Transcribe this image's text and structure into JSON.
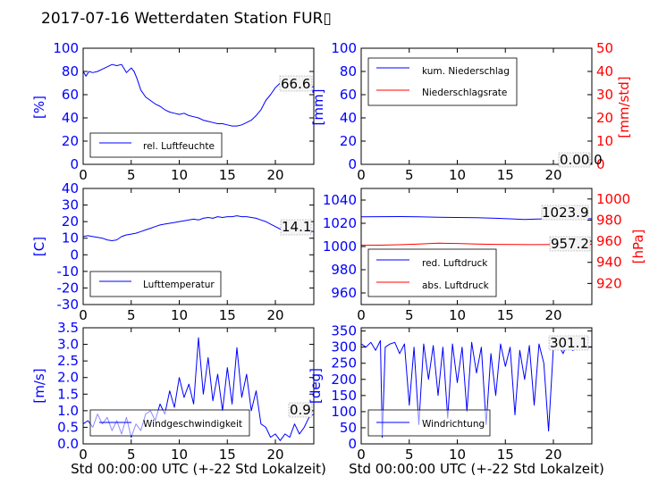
{
  "title": "2017-07-16 Wetterdaten Station FUR▯",
  "xlabel_bottom": "Std 00:00:00 UTC (+-22 Std Lokalzeit)",
  "colors": {
    "blue": "#0000ff",
    "red": "#ff0000",
    "black": "#000000"
  },
  "chart_data": [
    {
      "id": "humidity",
      "type": "line",
      "xlim": [
        0,
        24
      ],
      "ylim": [
        0,
        100
      ],
      "xticks": [
        0,
        5,
        10,
        15,
        20
      ],
      "yticks": [
        0,
        20,
        40,
        60,
        80,
        100
      ],
      "ylabel": "[%]",
      "last_value": "66.6",
      "series": [
        {
          "name": "rel. Luftfeuchte",
          "color": "#0000ff",
          "x": [
            0,
            0.3,
            0.6,
            1,
            1.5,
            2,
            2.5,
            3,
            3.5,
            4,
            4.5,
            5,
            5.3,
            5.6,
            6,
            6.5,
            7,
            7.5,
            8,
            8.5,
            9,
            9.5,
            10,
            10.5,
            11,
            11.5,
            12,
            12.5,
            13,
            13.5,
            14,
            14.5,
            15,
            15.5,
            16,
            16.5,
            17,
            17.5,
            18,
            18.5,
            19,
            19.5,
            20,
            20.5,
            21,
            21.5,
            22,
            22.5,
            23,
            23.5,
            24
          ],
          "y": [
            80,
            76,
            80,
            79,
            80,
            82,
            84,
            86,
            85,
            86,
            79,
            83,
            80,
            74,
            64,
            58,
            55,
            52,
            50,
            47,
            45,
            44,
            43,
            44,
            42,
            41,
            40,
            38,
            37,
            36,
            35,
            35,
            34,
            33,
            33,
            34,
            36,
            38,
            42,
            47,
            55,
            60,
            66,
            70,
            68,
            65,
            67,
            66,
            65,
            66,
            67
          ]
        }
      ],
      "legend_loc": "lower-left"
    },
    {
      "id": "precip",
      "type": "line",
      "xlim": [
        0,
        24
      ],
      "ylim": [
        0,
        100
      ],
      "ylim_right": [
        0,
        50
      ],
      "xticks": [
        0,
        5,
        10,
        15,
        20
      ],
      "yticks": [
        0,
        20,
        40,
        60,
        80,
        100
      ],
      "yticks_right": [
        0,
        10,
        20,
        30,
        40,
        50
      ],
      "ylabel": "[mm]",
      "ylabel_right": "[mm/std]",
      "last_value": "0.00.0",
      "series": [
        {
          "name": "kum. Niederschlag",
          "color": "#0000ff",
          "axis": "left",
          "x": [
            0,
            24
          ],
          "y": [
            0,
            0
          ]
        },
        {
          "name": "Niederschlagsrate",
          "color": "#ff0000",
          "axis": "right",
          "x": [
            0,
            24
          ],
          "y": [
            0,
            0
          ]
        }
      ],
      "legend_loc": "upper-left"
    },
    {
      "id": "temperature",
      "type": "line",
      "xlim": [
        0,
        24
      ],
      "ylim": [
        -30,
        40
      ],
      "xticks": [
        0,
        5,
        10,
        15,
        20
      ],
      "yticks": [
        -30,
        -20,
        -10,
        0,
        10,
        20,
        30,
        40
      ],
      "ylabel": "[C]",
      "last_value": "14.1",
      "series": [
        {
          "name": "Lufttemperatur",
          "color": "#0000ff",
          "x": [
            0,
            0.5,
            1,
            1.5,
            2,
            2.5,
            3,
            3.5,
            4,
            4.5,
            5,
            5.5,
            6,
            6.5,
            7,
            7.5,
            8,
            8.5,
            9,
            9.5,
            10,
            10.5,
            11,
            11.5,
            12,
            12.5,
            13,
            13.5,
            14,
            14.5,
            15,
            15.5,
            16,
            16.5,
            17,
            17.5,
            18,
            18.5,
            19,
            19.5,
            20,
            20.5,
            21,
            21.5,
            22,
            22.5,
            23,
            23.5,
            24
          ],
          "y": [
            11,
            11.5,
            11,
            10.5,
            10,
            9,
            8.5,
            9,
            11,
            12,
            12.5,
            13,
            14,
            15,
            16,
            17,
            18,
            18.5,
            19,
            19.5,
            20,
            20.5,
            21,
            21.5,
            21,
            22,
            22.5,
            22,
            23,
            22.5,
            23,
            23,
            23.5,
            23,
            23,
            22.5,
            22,
            21,
            20,
            18.5,
            17,
            15.5,
            15,
            14.5,
            14.2,
            14.1,
            14,
            14.1,
            14.1
          ]
        }
      ],
      "legend_loc": "lower-left"
    },
    {
      "id": "pressure",
      "type": "line",
      "xlim": [
        0,
        24
      ],
      "ylim": [
        950,
        1050
      ],
      "ylim_right": [
        900,
        1010
      ],
      "xticks": [
        0,
        5,
        10,
        15,
        20
      ],
      "yticks": [
        960,
        980,
        1000,
        1020,
        1040
      ],
      "yticks_right": [
        920,
        940,
        960,
        980,
        1000
      ],
      "ylabel_right": "[hPa]",
      "last_values": [
        "1023.9",
        "957.2"
      ],
      "series": [
        {
          "name": "red. Luftdruck",
          "color": "#0000ff",
          "axis": "left",
          "x": [
            0,
            2,
            4,
            6,
            8,
            10,
            12,
            14,
            16,
            17,
            18,
            20,
            22,
            24
          ],
          "y": [
            1025.5,
            1025.7,
            1025.8,
            1025.6,
            1025.2,
            1025,
            1024.8,
            1024.3,
            1023.6,
            1023.3,
            1023.5,
            1024,
            1024.1,
            1023.9
          ]
        },
        {
          "name": "abs. Luftdruck",
          "color": "#ff0000",
          "axis": "right",
          "x": [
            0,
            2,
            4,
            6,
            8,
            10,
            12,
            14,
            16,
            18,
            20,
            22,
            24
          ],
          "y": [
            956.2,
            956.3,
            956.7,
            957.4,
            958.1,
            957.9,
            957.4,
            957,
            956.9,
            956.8,
            956.9,
            957.1,
            957.2
          ]
        }
      ],
      "legend_loc": "lower-left"
    },
    {
      "id": "windspeed",
      "type": "line",
      "xlim": [
        0,
        24
      ],
      "ylim": [
        0,
        3.5
      ],
      "xticks": [
        0,
        5,
        10,
        15,
        20
      ],
      "yticks": [
        0.0,
        0.5,
        1.0,
        1.5,
        2.0,
        2.5,
        3.0,
        3.5
      ],
      "ylabel": "[m/s]",
      "last_value": "0.9",
      "series": [
        {
          "name": "Windgeschwindigkeit",
          "color": "#0000ff",
          "x": [
            0,
            0.5,
            1,
            1.5,
            2,
            2.5,
            3,
            3.5,
            4,
            4.5,
            5,
            5.5,
            6,
            6.5,
            7,
            7.5,
            8,
            8.5,
            9,
            9.5,
            10,
            10.5,
            11,
            11.5,
            12,
            12.5,
            13,
            13.5,
            14,
            14.5,
            15,
            15.5,
            16,
            16.5,
            17,
            17.5,
            18,
            18.5,
            19,
            19.5,
            20,
            20.5,
            21,
            21.5,
            22,
            22.5,
            23,
            23.5,
            24
          ],
          "y": [
            0.6,
            0.7,
            0.5,
            0.9,
            0.6,
            0.8,
            0.4,
            0.7,
            0.3,
            0.8,
            0.2,
            0.6,
            0.4,
            0.9,
            1.0,
            0.7,
            1.2,
            0.9,
            1.6,
            1.1,
            2.0,
            1.4,
            1.8,
            1.2,
            3.2,
            1.5,
            2.6,
            1.3,
            2.1,
            1.0,
            2.3,
            1.2,
            2.9,
            1.4,
            2.1,
            1.0,
            1.6,
            0.6,
            0.5,
            0.2,
            0.3,
            0.1,
            0.3,
            0.2,
            0.6,
            0.3,
            0.5,
            0.8,
            0.9
          ]
        }
      ],
      "legend_loc": "lower-left"
    },
    {
      "id": "winddir",
      "type": "line",
      "xlim": [
        0,
        24
      ],
      "ylim": [
        0,
        360
      ],
      "xticks": [
        0,
        5,
        10,
        15,
        20
      ],
      "yticks": [
        0,
        50,
        100,
        150,
        200,
        250,
        300,
        350
      ],
      "ylabel": "[deg]",
      "last_value": "301.1",
      "series": [
        {
          "name": "Windrichtung",
          "color": "#0000ff",
          "x": [
            0,
            0.5,
            1,
            1.5,
            2,
            2.2,
            2.5,
            3,
            3.5,
            4,
            4.5,
            5,
            5.5,
            6,
            6.5,
            7,
            7.5,
            8,
            8.5,
            9,
            9.5,
            10,
            10.5,
            11,
            11.5,
            12,
            12.5,
            13,
            13.5,
            14,
            14.5,
            15,
            15.5,
            16,
            16.5,
            17,
            17.5,
            18,
            18.5,
            19,
            19.5,
            20,
            20.5,
            21,
            21.5,
            22,
            22.5,
            23,
            23.5,
            24
          ],
          "y": [
            310,
            300,
            315,
            290,
            320,
            20,
            300,
            310,
            315,
            280,
            310,
            120,
            300,
            60,
            310,
            200,
            305,
            150,
            300,
            80,
            310,
            190,
            300,
            100,
            315,
            220,
            300,
            60,
            280,
            150,
            310,
            240,
            300,
            90,
            290,
            200,
            305,
            120,
            310,
            250,
            40,
            300,
            310,
            280,
            315,
            290,
            300,
            310,
            300,
            301
          ]
        }
      ],
      "legend_loc": "lower-left"
    }
  ]
}
